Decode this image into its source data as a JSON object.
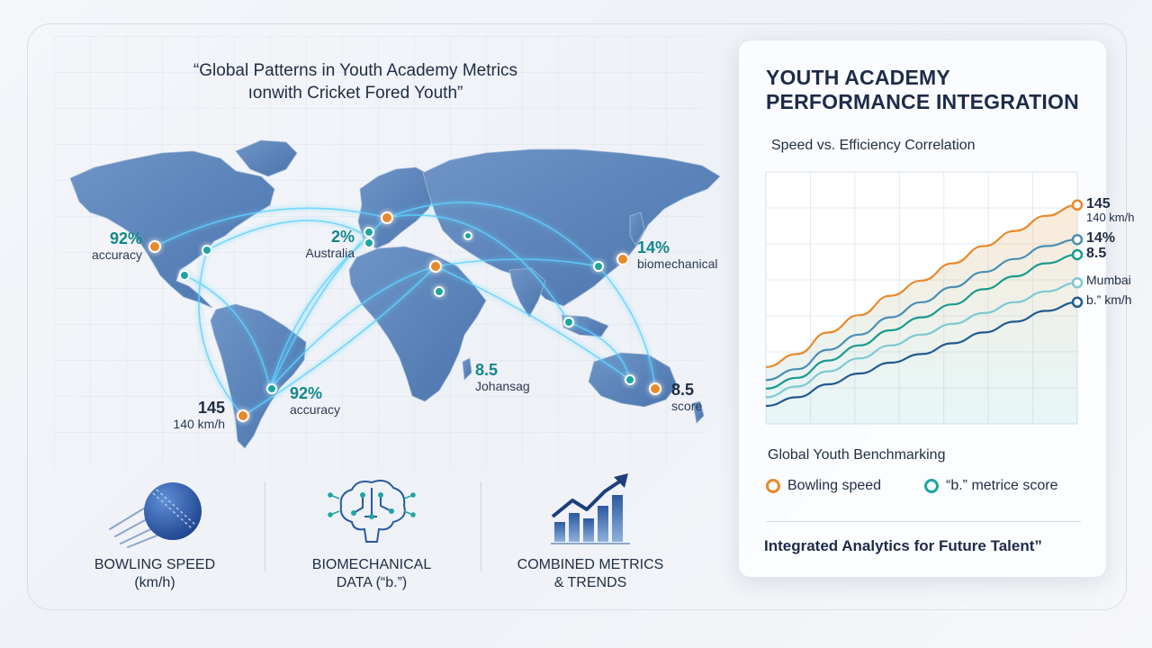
{
  "map": {
    "title_line1": "“Global Patterns in Youth Academy Metrics",
    "title_line2": "ıonwith Cricket Fored Youth”",
    "labels": [
      {
        "id": "na",
        "value": "92%",
        "sub": "accuracy",
        "value_color": "teal"
      },
      {
        "id": "eu",
        "value": "2%",
        "sub": "Australia",
        "value_color": "teal"
      },
      {
        "id": "asia",
        "value": "14%",
        "sub": "biomechanical",
        "value_color": "teal"
      },
      {
        "id": "af",
        "value": "8.5",
        "sub": "Johansag",
        "value_color": "teal"
      },
      {
        "id": "sa1",
        "value": "145",
        "sub": "140 km/h",
        "value_color": "navy"
      },
      {
        "id": "sa2",
        "value": "92%",
        "sub": "accuracy",
        "value_color": "teal"
      },
      {
        "id": "au",
        "value": "8.5",
        "sub": "score",
        "value_color": "navy"
      }
    ]
  },
  "features": [
    {
      "icon": "cricket-ball-icon",
      "line1": "BOWLING SPEED",
      "line2": "(km/h)"
    },
    {
      "icon": "brain-circuit-icon",
      "line1": "BIOMECHANICAL",
      "line2": "DATA (“b.”)"
    },
    {
      "icon": "bar-chart-trend-icon",
      "line1": "COMBINED METRICS",
      "line2": "& TRENDS"
    }
  ],
  "panel": {
    "title_line1": "YOUTH ACADEMY",
    "title_line2": "PERFORMANCE INTEGRATION",
    "chart_subtitle": "Speed vs. Efficiency Correlation",
    "benchmark_title": "Global Youth Benchmarking",
    "legend": [
      {
        "label": "Bowling speed",
        "color": "#e8892a"
      },
      {
        "label": "“b.” metrice score",
        "color": "#1fa5a3"
      }
    ],
    "footer": "Integrated Analytics for Future Talent”"
  },
  "chart_data": {
    "type": "line",
    "title": "Speed vs. Efficiency Correlation",
    "grid": true,
    "ylim": [
      0,
      100
    ],
    "x": [
      0,
      1,
      2,
      3,
      4,
      5,
      6,
      7,
      8,
      9,
      10
    ],
    "series": [
      {
        "name": "145 / 140 km/h",
        "color": "#e8892a",
        "values": [
          18,
          24,
          34,
          42,
          51,
          58,
          66,
          74,
          81,
          88,
          93
        ]
      },
      {
        "name": "14%",
        "color": "#4a8fb5",
        "values": [
          12,
          17,
          26,
          33,
          41,
          48,
          55,
          62,
          68,
          74,
          77
        ]
      },
      {
        "name": "8.5",
        "color": "#1a9a8f",
        "values": [
          8,
          13,
          21,
          28,
          35,
          41,
          47,
          54,
          60,
          66,
          70
        ]
      },
      {
        "name": "Mumbai",
        "color": "#7cc9d4",
        "values": [
          4,
          9,
          16,
          22,
          28,
          33,
          38,
          43,
          48,
          53,
          57
        ]
      },
      {
        "name": "b.” km/h",
        "color": "#1f5a8f",
        "values": [
          0,
          4,
          10,
          15,
          20,
          24,
          29,
          34,
          39,
          44,
          48
        ]
      }
    ],
    "end_labels": [
      {
        "value": "145",
        "sub": "140 km/h"
      },
      {
        "value": "14%",
        "sub": ""
      },
      {
        "value": "8.5",
        "sub": ""
      },
      {
        "value": "Mumbai",
        "sub": ""
      },
      {
        "value": "b.” km/h",
        "sub": ""
      }
    ]
  },
  "colors": {
    "orange": "#e8892a",
    "teal": "#1fa5a3",
    "navy": "#1d2b49",
    "land": "#5a84bb",
    "glow": "#5fd3ff"
  }
}
